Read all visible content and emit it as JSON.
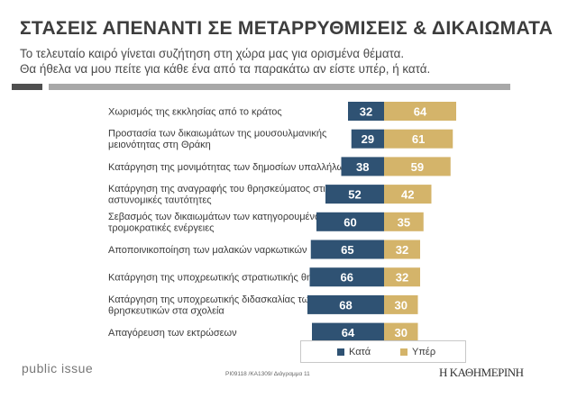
{
  "header": {
    "title": "ΣΤΑΣΕΙΣ ΑΠΕΝΑΝΤΙ ΣΕ ΜΕΤΑΡΡΥΘΜΙΣΕΙΣ & ΔΙΚΑΙΩΜΑΤΑ",
    "subtitle_line1": "Το τελευταίο καιρό γίνεται συζήτηση στη χώρα μας για ορισμένα θέματα.",
    "subtitle_line2": "Θα ήθελα να μου πείτε για κάθε ένα από τα παρακάτω αν είστε υπέρ, ή κατά."
  },
  "chart_data": {
    "type": "bar",
    "orientation": "horizontal-diverging",
    "categories": [
      [
        "Χωρισμός της εκκλησίας από το κράτος"
      ],
      [
        "Προστασία των δικαιωμάτων της μουσουλμανικής",
        "μειονότητας στη Θράκη"
      ],
      [
        "Κατάργηση της μονιμότητας των δημοσίων υπαλλήλων"
      ],
      [
        "Κατάργηση της αναγραφής του θρησκεύματος στις",
        "αστυνομικές ταυτότητες"
      ],
      [
        "Σεβασμός των δικαιωμάτων των κατηγορουμένων για",
        "τρομοκρατικές ενέργειες"
      ],
      [
        "Αποποινικοποίηση των μαλακών ναρκωτικών"
      ],
      [
        "Κατάργηση της υποχρεωτικής στρατιωτικής θητείας"
      ],
      [
        "Κατάργηση της υποχρεωτικής διδασκαλίας των",
        "θρησκευτικών στα σχολεία"
      ],
      [
        "Απαγόρευση των εκτρώσεων"
      ]
    ],
    "series": [
      {
        "name": "Κατά",
        "color": "#2f5273",
        "values": [
          32,
          29,
          38,
          52,
          60,
          65,
          66,
          68,
          64
        ]
      },
      {
        "name": "Υπέρ",
        "color": "#d4b46a",
        "values": [
          64,
          61,
          59,
          42,
          35,
          32,
          32,
          30,
          30
        ]
      }
    ],
    "xlim": [
      0,
      100
    ],
    "legend": "bottom"
  },
  "footer": {
    "brand": "public issue",
    "code": "PI09118 /ΚΑ1309/ Διάγραμμα 11",
    "publisher": "Η ΚΑΘΗΜΕΡΙΝΗ"
  }
}
